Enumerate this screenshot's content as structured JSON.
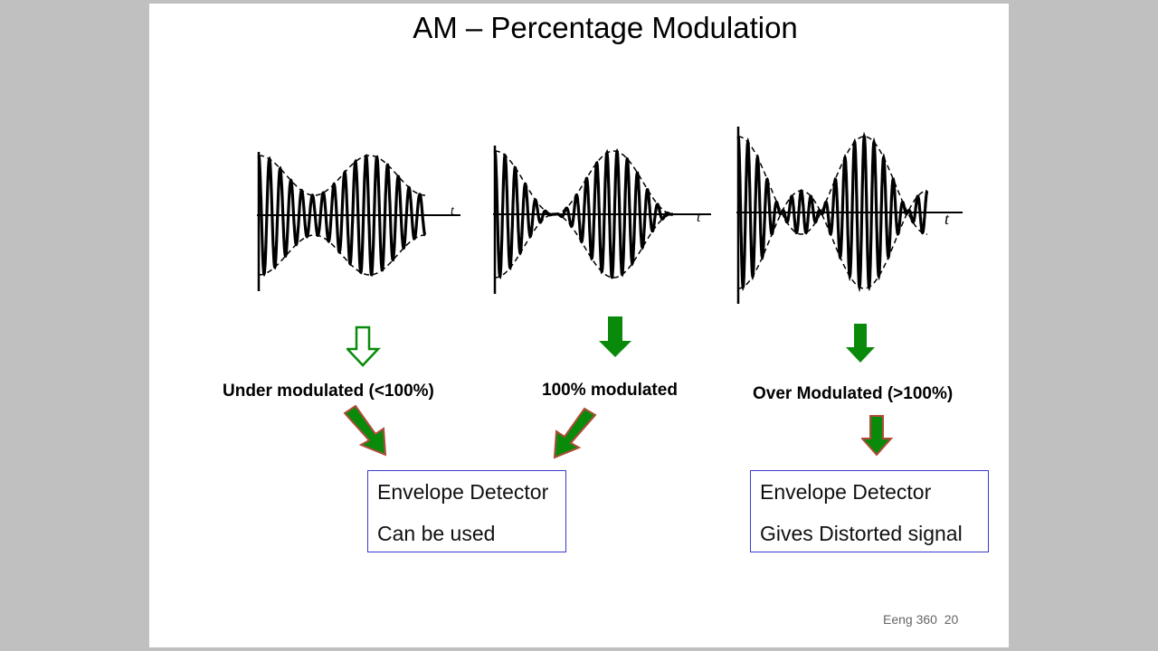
{
  "title": "AM – Percentage Modulation",
  "panels": [
    {
      "axis_label": "t",
      "caption": "Under modulated (<100%)"
    },
    {
      "axis_label": "t",
      "caption": "100% modulated"
    },
    {
      "axis_label": "t",
      "caption": "Over Modulated (>100%)"
    }
  ],
  "boxes": [
    {
      "line1": "Envelope Detector",
      "line2": "Can be used"
    },
    {
      "line1": "Envelope Detector",
      "line2": "Gives Distorted signal"
    }
  ],
  "footer": "Eeng 360  20",
  "colors": {
    "arrow_green": "#0a8a0a",
    "arrow_outline": "#b04a3a",
    "box_border": "#3a3acc",
    "background": "#c0c0c0"
  },
  "icons": [
    "hollow-down-arrow-icon",
    "solid-down-arrow-icon",
    "diagonal-arrow-icon"
  ]
}
